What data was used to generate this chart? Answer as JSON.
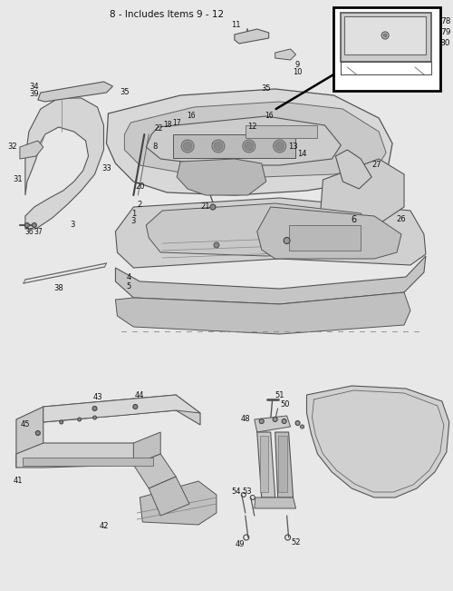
{
  "title": "8 - Includes Items 9 - 12",
  "bg_color": "#e8e8e8",
  "line_color": "#444444",
  "text_color": "#111111",
  "fig_width": 5.0,
  "fig_height": 6.51,
  "dpi": 100,
  "xlim": [
    0,
    500
  ],
  "ylim": [
    0,
    651
  ]
}
